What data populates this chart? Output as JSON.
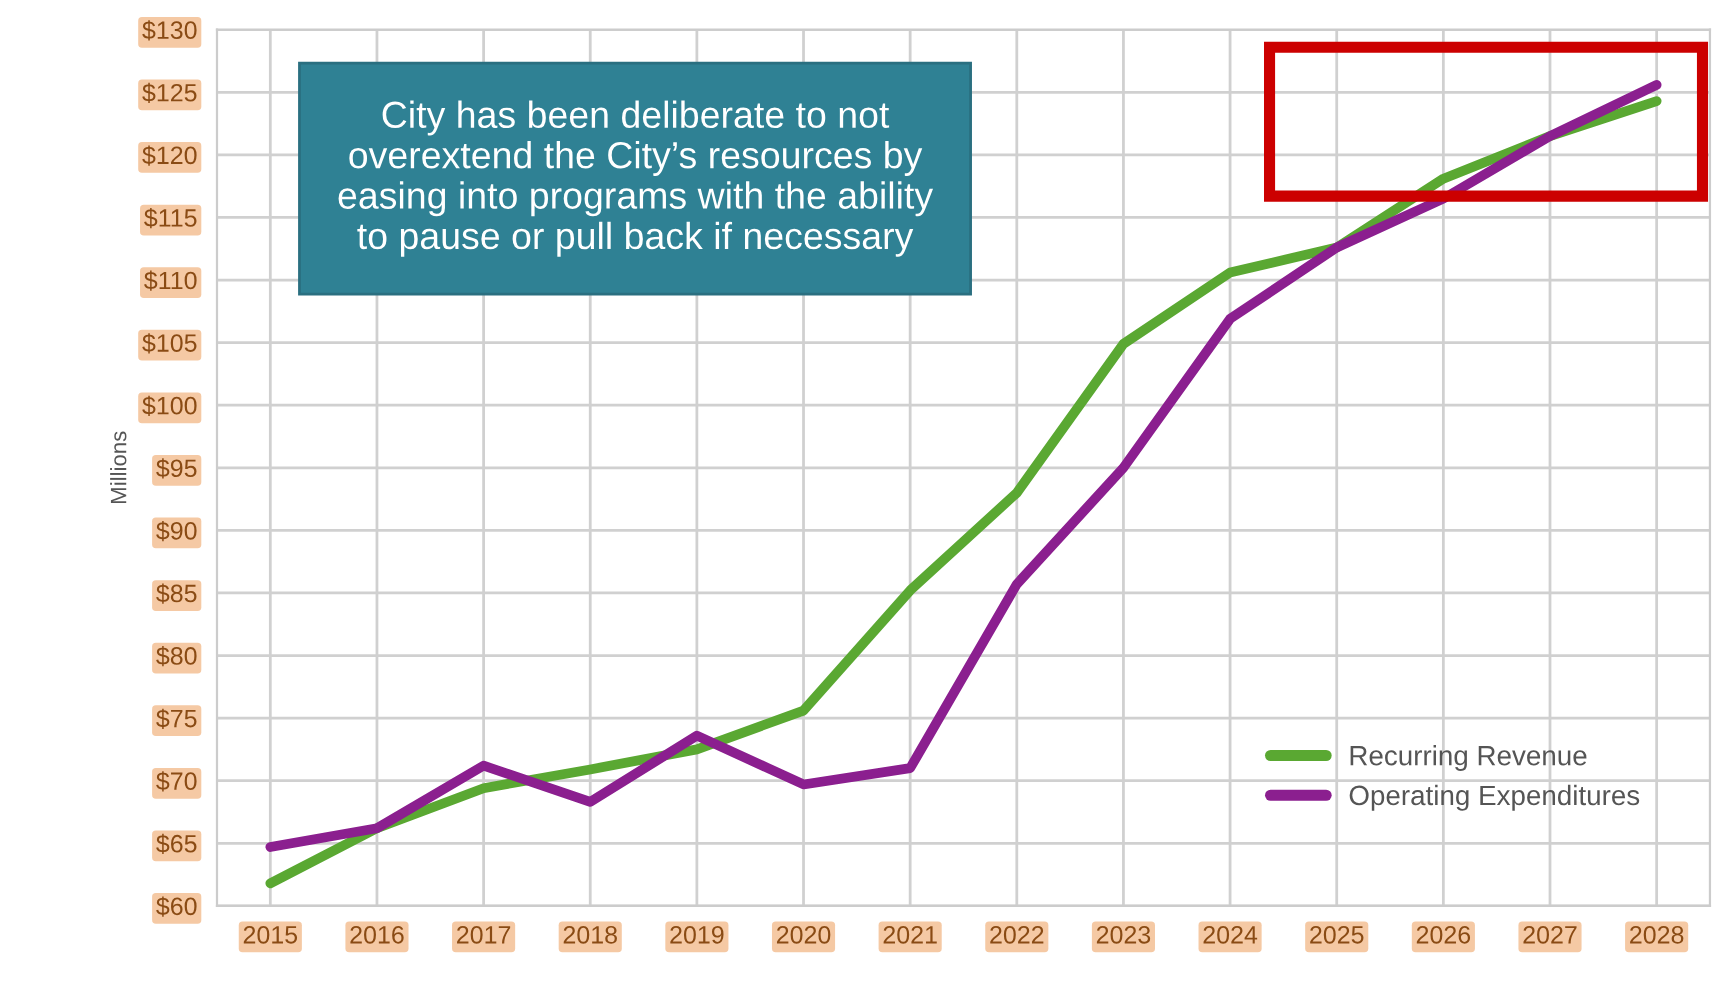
{
  "chart_data": {
    "type": "line",
    "ylabel": "Millions",
    "categories": [
      "2015",
      "2016",
      "2017",
      "2018",
      "2019",
      "2020",
      "2021",
      "2022",
      "2023",
      "2024",
      "2025",
      "2026",
      "2027",
      "2028"
    ],
    "series": [
      {
        "name": "Recurring Revenue",
        "color": "#5aa832",
        "values": [
          61.8,
          66.2,
          69.4,
          70.9,
          72.5,
          75.6,
          85.2,
          93.0,
          104.9,
          110.6,
          112.6,
          118.1,
          121.5,
          124.3
        ]
      },
      {
        "name": "Operating Expenditures",
        "color": "#8b1f8f",
        "values": [
          64.7,
          66.2,
          71.2,
          68.3,
          73.6,
          69.7,
          71.0,
          85.7,
          95.0,
          106.9,
          112.6,
          116.5,
          121.5,
          125.6
        ]
      }
    ],
    "ylim": [
      60,
      130
    ],
    "yticks": [
      {
        "value": 60,
        "label": "$60"
      },
      {
        "value": 65,
        "label": "$65"
      },
      {
        "value": 70,
        "label": "$70"
      },
      {
        "value": 75,
        "label": "$75"
      },
      {
        "value": 80,
        "label": "$80"
      },
      {
        "value": 85,
        "label": "$85"
      },
      {
        "value": 90,
        "label": "$90"
      },
      {
        "value": 95,
        "label": "$95"
      },
      {
        "value": 100,
        "label": "$100"
      },
      {
        "value": 105,
        "label": "$105"
      },
      {
        "value": 110,
        "label": "$110"
      },
      {
        "value": 115,
        "label": "$115"
      },
      {
        "value": 120,
        "label": "$120"
      },
      {
        "value": 125,
        "label": "$125"
      },
      {
        "value": 130,
        "label": "$130"
      }
    ],
    "annotations": [
      "City has been deliberate to not overextend the City’s resources by easing into programs with the ability to pause or pull back if necessary"
    ],
    "grid": true,
    "legend": "bottom right",
    "marker": "none",
    "line_style": "solid"
  }
}
